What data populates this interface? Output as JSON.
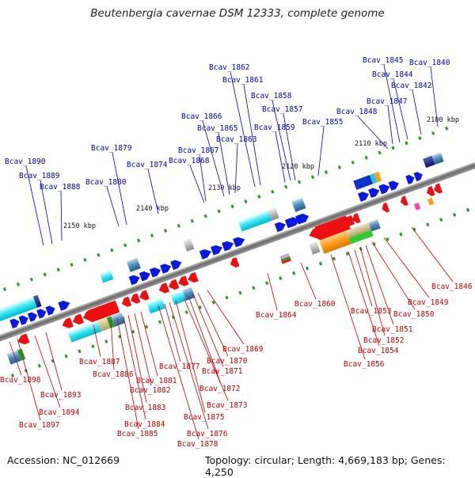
{
  "title": "Beutenbergia cavernae DSM 12333, complete genome",
  "footer": {
    "accession": "Accession: NC_012669",
    "summary": "Topology: circular; Length: 4,669,183 bp; Genes: 4,250"
  },
  "ticks": [
    "2100 kbp",
    "2110 kbp",
    "2120 kbp",
    "2130 kbp",
    "2140 kbp",
    "2150 kbp"
  ],
  "colors": {
    "forward_label": "#0000cc",
    "reverse_label": "#cc0000",
    "axis": "#777777"
  },
  "forward_genes": [
    "Bcav_1840",
    "Bcav_1842",
    "Bcav_1844",
    "Bcav_1845",
    "Bcav_1847",
    "Bcav_1848",
    "Bcav_1855",
    "Bcav_1857",
    "Bcav_1858",
    "Bcav_1859",
    "Bcav_1861",
    "Bcav_1862",
    "Bcav_1863",
    "Bcav_1865",
    "Bcav_1866",
    "Bcav_1867",
    "Bcav_1868",
    "Bcav_1874",
    "Bcav_1879",
    "Bcav_1880",
    "Bcav_1888",
    "Bcav_1889",
    "Bcav_1890"
  ],
  "reverse_genes": [
    "Bcav_1846",
    "Bcav_1849",
    "Bcav_1850",
    "Bcav_1851",
    "Bcav_1852",
    "Bcav_1853",
    "Bcav_1854",
    "Bcav_1856",
    "Bcav_1860",
    "Bcav_1864",
    "Bcav_1869",
    "Bcav_1870",
    "Bcav_1871",
    "Bcav_1872",
    "Bcav_1873",
    "Bcav_1875",
    "Bcav_1876",
    "Bcav_1877",
    "Bcav_1878",
    "Bcav_1881",
    "Bcav_1882",
    "Bcav_1883",
    "Bcav_1884",
    "Bcav_1885",
    "Bcav_1886",
    "Bcav_1887",
    "Bcav_1893",
    "Bcav_1894",
    "Bcav_1897",
    "Bcav_1898"
  ]
}
